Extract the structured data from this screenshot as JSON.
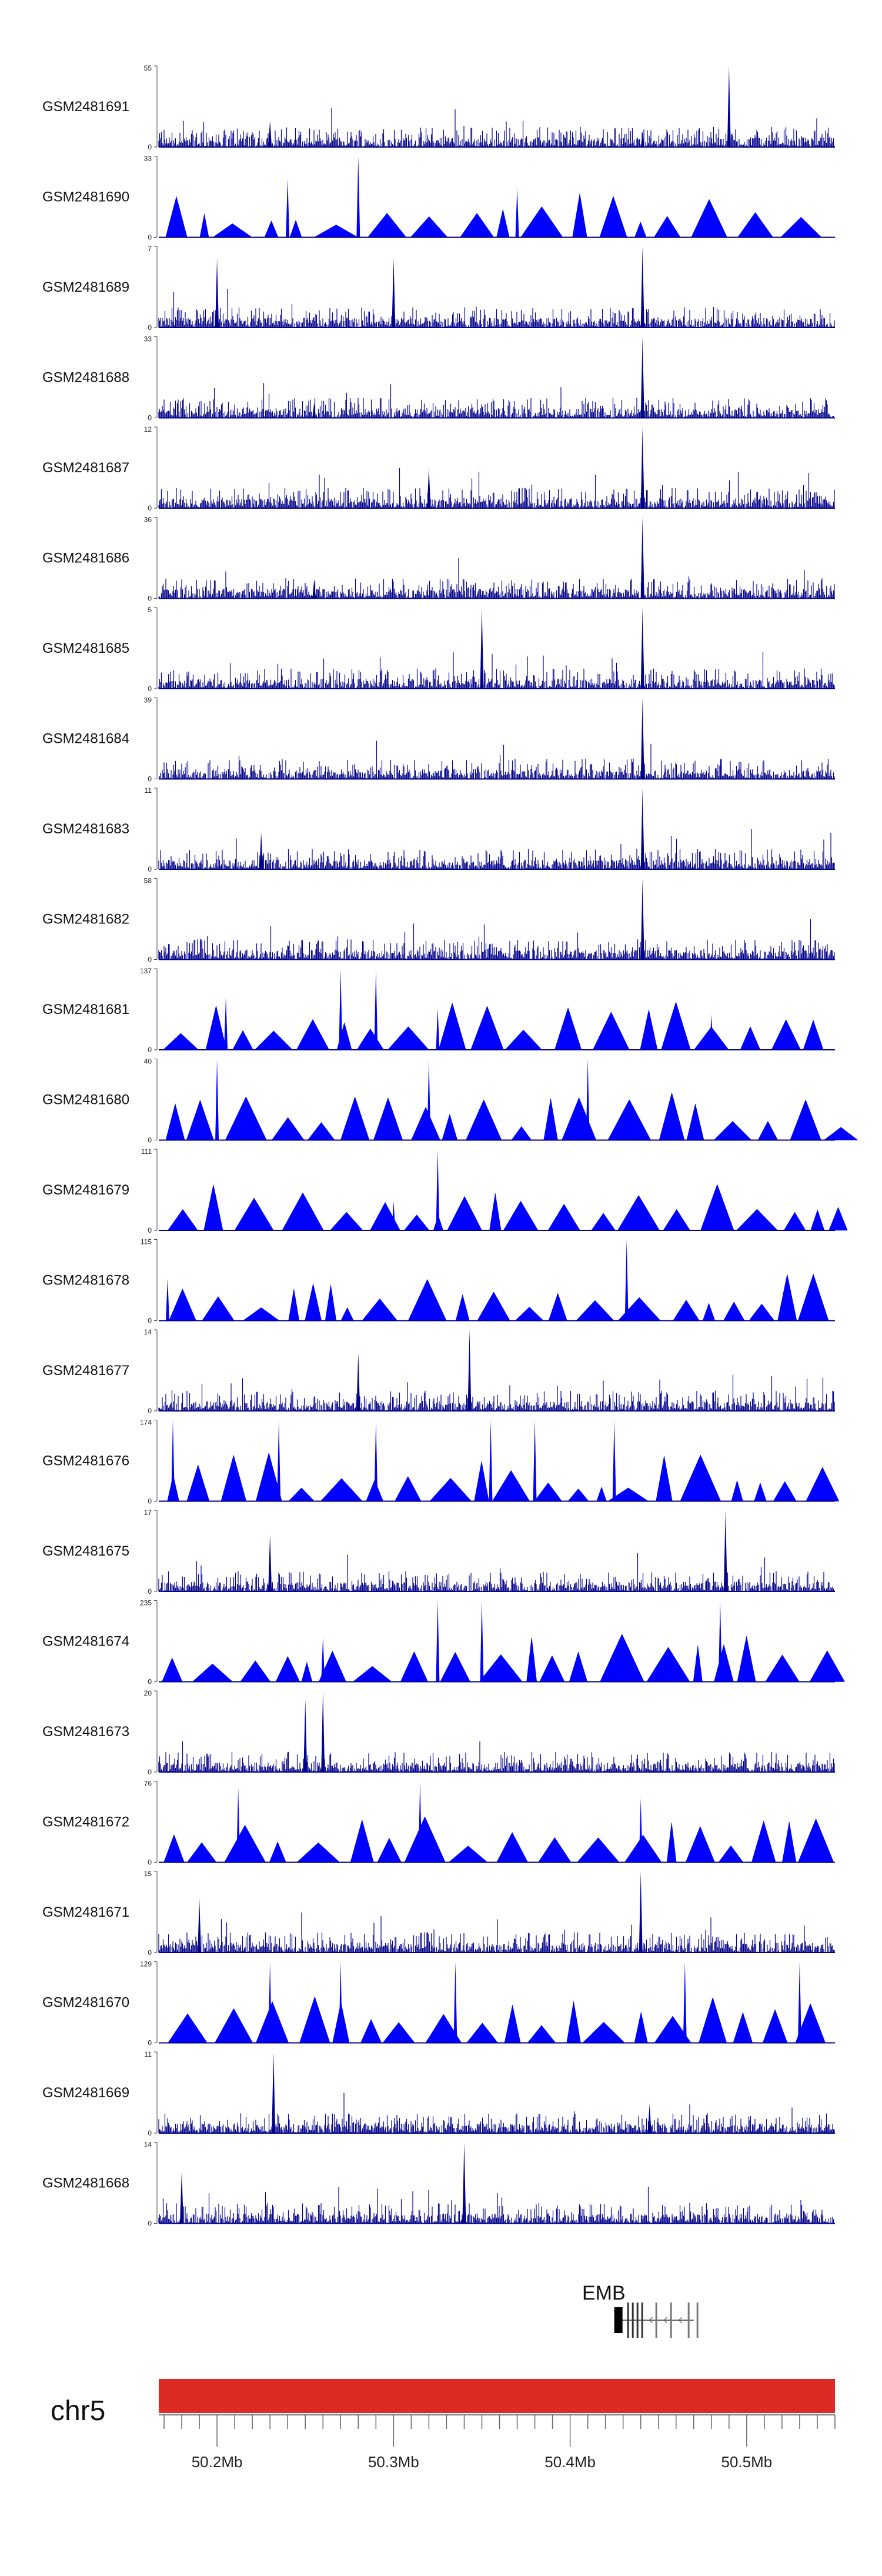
{
  "chart_data": {
    "type": "area",
    "title": "",
    "xlabel": "",
    "ylabel": "",
    "chromosome": "chr5",
    "xlim": [
      50167000,
      50550000
    ],
    "x_ticks": [
      50200000,
      50300000,
      50400000,
      50500000
    ],
    "x_tick_labels": [
      "50.2Mb",
      "50.3Mb",
      "50.4Mb",
      "50.5Mb"
    ],
    "series_color": "#0000ff",
    "dense_color": "#00008b",
    "ideogram_color": "#dc2a25",
    "gene": {
      "name": "EMB",
      "start": 50425000,
      "end": 50470000
    },
    "peak_position": 50441000,
    "tracks": [
      {
        "name": "GSM2481691",
        "ymax": 55,
        "ymin": 0,
        "style": "dense",
        "peaks": [
          [
            50490000,
            55
          ],
          [
            50230000,
            18
          ],
          [
            50441000,
            10
          ]
        ]
      },
      {
        "name": "GSM2481690",
        "ymax": 33,
        "ymin": 0,
        "style": "sparse",
        "peaks": [
          [
            50280000,
            33
          ],
          [
            50240000,
            24
          ],
          [
            50370000,
            20
          ]
        ]
      },
      {
        "name": "GSM2481689",
        "ymax": 7,
        "ymin": 0,
        "style": "dense",
        "peaks": [
          [
            50441000,
            7
          ],
          [
            50300000,
            6
          ],
          [
            50200000,
            6
          ]
        ]
      },
      {
        "name": "GSM2481688",
        "ymax": 33,
        "ymin": 0,
        "style": "dense",
        "peaks": [
          [
            50441000,
            33
          ],
          [
            50255000,
            6
          ]
        ]
      },
      {
        "name": "GSM2481687",
        "ymax": 12,
        "ymin": 0,
        "style": "dense",
        "peaks": [
          [
            50441000,
            12
          ],
          [
            50320000,
            6
          ]
        ]
      },
      {
        "name": "GSM2481686",
        "ymax": 36,
        "ymin": 0,
        "style": "dense",
        "peaks": [
          [
            50441000,
            36
          ],
          [
            50255000,
            8
          ]
        ]
      },
      {
        "name": "GSM2481685",
        "ymax": 5,
        "ymin": 0,
        "style": "dense",
        "peaks": [
          [
            50441000,
            5
          ],
          [
            50350000,
            5
          ]
        ]
      },
      {
        "name": "GSM2481684",
        "ymax": 39,
        "ymin": 0,
        "style": "dense",
        "peaks": [
          [
            50441000,
            39
          ]
        ]
      },
      {
        "name": "GSM2481683",
        "ymax": 11,
        "ymin": 0,
        "style": "dense",
        "peaks": [
          [
            50441000,
            11
          ],
          [
            50225000,
            5
          ]
        ]
      },
      {
        "name": "GSM2481682",
        "ymax": 58,
        "ymin": 0,
        "style": "dense",
        "peaks": [
          [
            50441000,
            58
          ]
        ]
      },
      {
        "name": "GSM2481681",
        "ymax": 137,
        "ymin": 0,
        "style": "sparse",
        "peaks": [
          [
            50270000,
            137
          ],
          [
            50290000,
            137
          ],
          [
            50205000,
            90
          ],
          [
            50325000,
            70
          ],
          [
            50480000,
            60
          ]
        ]
      },
      {
        "name": "GSM2481680",
        "ymax": 40,
        "ymin": 0,
        "style": "sparse",
        "peaks": [
          [
            50200000,
            40
          ],
          [
            50320000,
            40
          ],
          [
            50410000,
            40
          ]
        ]
      },
      {
        "name": "GSM2481679",
        "ymax": 111,
        "ymin": 0,
        "style": "sparse",
        "peaks": [
          [
            50325000,
            111
          ],
          [
            50300000,
            40
          ]
        ]
      },
      {
        "name": "GSM2481678",
        "ymax": 115,
        "ymin": 0,
        "style": "sparse",
        "peaks": [
          [
            50432000,
            115
          ],
          [
            50172000,
            60
          ]
        ]
      },
      {
        "name": "GSM2481677",
        "ymax": 14,
        "ymin": 0,
        "style": "dense",
        "peaks": [
          [
            50343000,
            14
          ],
          [
            50280000,
            10
          ]
        ]
      },
      {
        "name": "GSM2481676",
        "ymax": 174,
        "ymin": 0,
        "style": "sparse",
        "peaks": [
          [
            50175000,
            174
          ],
          [
            50235000,
            174
          ],
          [
            50290000,
            174
          ],
          [
            50355000,
            174
          ],
          [
            50380000,
            174
          ],
          [
            50425000,
            174
          ]
        ]
      },
      {
        "name": "GSM2481675",
        "ymax": 17,
        "ymin": 0,
        "style": "dense",
        "peaks": [
          [
            50488000,
            17
          ],
          [
            50230000,
            12
          ]
        ]
      },
      {
        "name": "GSM2481674",
        "ymax": 235,
        "ymin": 0,
        "style": "sparse",
        "peaks": [
          [
            50325000,
            235
          ],
          [
            50350000,
            235
          ],
          [
            50485000,
            235
          ],
          [
            50260000,
            130
          ]
        ]
      },
      {
        "name": "GSM2481673",
        "ymax": 20,
        "ymin": 0,
        "style": "dense",
        "peaks": [
          [
            50260000,
            20
          ],
          [
            50250000,
            18
          ]
        ]
      },
      {
        "name": "GSM2481672",
        "ymax": 76,
        "ymin": 0,
        "style": "sparse",
        "peaks": [
          [
            50315000,
            76
          ],
          [
            50212000,
            70
          ],
          [
            50440000,
            60
          ]
        ]
      },
      {
        "name": "GSM2481671",
        "ymax": 15,
        "ymin": 0,
        "style": "dense",
        "peaks": [
          [
            50440000,
            15
          ],
          [
            50190000,
            10
          ]
        ]
      },
      {
        "name": "GSM2481670",
        "ymax": 129,
        "ymin": 0,
        "style": "sparse",
        "peaks": [
          [
            50230000,
            129
          ],
          [
            50270000,
            129
          ],
          [
            50335000,
            129
          ],
          [
            50465000,
            129
          ],
          [
            50530000,
            129
          ]
        ]
      },
      {
        "name": "GSM2481669",
        "ymax": 11,
        "ymin": 0,
        "style": "dense",
        "peaks": [
          [
            50232000,
            11
          ],
          [
            50445000,
            4
          ]
        ]
      },
      {
        "name": "GSM2481668",
        "ymax": 14,
        "ymin": 0,
        "style": "dense",
        "peaks": [
          [
            50340000,
            14
          ],
          [
            50180000,
            9
          ]
        ]
      }
    ]
  }
}
